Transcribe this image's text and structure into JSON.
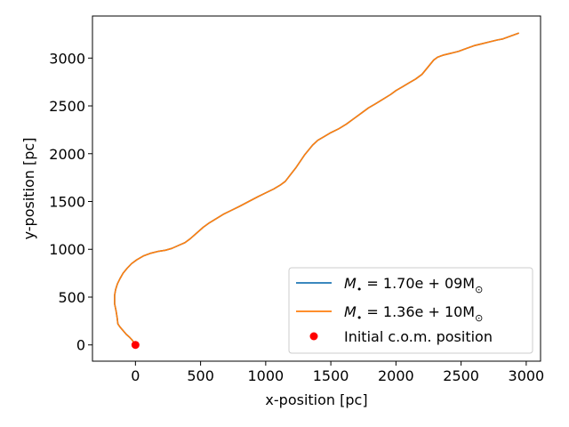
{
  "chart_data": {
    "type": "line",
    "title": "",
    "xlabel": "x-position [pc]",
    "ylabel": "y-position [pc]",
    "xlim": [
      -330,
      3110
    ],
    "ylim": [
      -170,
      3440
    ],
    "xticks": [
      0,
      500,
      1000,
      1500,
      2000,
      2500,
      3000
    ],
    "yticks": [
      0,
      500,
      1000,
      1500,
      2000,
      2500,
      3000
    ],
    "grid": false,
    "legend_position": "lower-right",
    "series": [
      {
        "name": "M_{•}=1.70e+09M_{⊙}",
        "name_parts": {
          "lhs": "M",
          "sub1": "•",
          "mid": " = 1.70e + 09M",
          "sub2": "⊙"
        },
        "color": "#1f77b4",
        "x": [
          0,
          -10,
          -25,
          -45,
          -70,
          -95,
          -120,
          -135,
          -140,
          -148,
          -160,
          -160,
          -152,
          -138,
          -120,
          -95,
          -65,
          -30,
          10,
          60,
          120,
          180,
          230,
          280,
          330,
          380,
          420,
          470,
          520,
          560,
          620,
          680,
          740,
          800,
          870,
          940,
          1000,
          1060,
          1110,
          1150,
          1190,
          1230,
          1270,
          1300,
          1330,
          1360,
          1400,
          1450,
          1500,
          1560,
          1620,
          1680,
          1740,
          1790,
          1840,
          1900,
          1960,
          2000,
          2050,
          2100,
          2150,
          2200,
          2230,
          2260,
          2290,
          2320,
          2360,
          2420,
          2480,
          2540,
          2600,
          2660,
          2720,
          2780,
          2820,
          2860,
          2900,
          2940
        ],
        "y": [
          0,
          20,
          50,
          80,
          110,
          150,
          190,
          220,
          280,
          350,
          430,
          520,
          580,
          640,
          690,
          750,
          800,
          850,
          890,
          930,
          960,
          980,
          990,
          1010,
          1040,
          1070,
          1110,
          1170,
          1230,
          1270,
          1320,
          1370,
          1410,
          1450,
          1500,
          1550,
          1590,
          1630,
          1670,
          1710,
          1780,
          1850,
          1930,
          1990,
          2040,
          2090,
          2140,
          2180,
          2220,
          2260,
          2310,
          2370,
          2430,
          2480,
          2520,
          2570,
          2620,
          2660,
          2700,
          2740,
          2780,
          2830,
          2880,
          2930,
          2980,
          3010,
          3030,
          3050,
          3070,
          3100,
          3130,
          3150,
          3170,
          3190,
          3200,
          3220,
          3240,
          3260
        ]
      },
      {
        "name": "M_{•}=1.36e+10M_{⊙}",
        "name_parts": {
          "lhs": "M",
          "sub1": "•",
          "mid": " = 1.36e + 10M",
          "sub2": "⊙"
        },
        "color": "#ff7f0e",
        "x": [
          0,
          -10,
          -25,
          -45,
          -70,
          -95,
          -120,
          -135,
          -140,
          -148,
          -160,
          -160,
          -152,
          -138,
          -120,
          -95,
          -65,
          -30,
          10,
          60,
          120,
          180,
          230,
          280,
          330,
          380,
          420,
          470,
          520,
          560,
          620,
          680,
          740,
          800,
          870,
          940,
          1000,
          1060,
          1110,
          1150,
          1190,
          1230,
          1270,
          1300,
          1330,
          1360,
          1400,
          1450,
          1500,
          1560,
          1620,
          1680,
          1740,
          1790,
          1840,
          1900,
          1960,
          2000,
          2050,
          2100,
          2150,
          2200,
          2230,
          2260,
          2290,
          2320,
          2360,
          2420,
          2480,
          2540,
          2600,
          2660,
          2720,
          2780,
          2820,
          2860,
          2900,
          2940
        ],
        "y": [
          0,
          20,
          50,
          80,
          110,
          150,
          190,
          220,
          280,
          350,
          430,
          520,
          580,
          640,
          690,
          750,
          800,
          850,
          890,
          930,
          960,
          980,
          990,
          1010,
          1040,
          1070,
          1110,
          1170,
          1230,
          1270,
          1320,
          1370,
          1410,
          1450,
          1500,
          1550,
          1590,
          1630,
          1670,
          1710,
          1780,
          1850,
          1930,
          1990,
          2040,
          2090,
          2140,
          2180,
          2220,
          2260,
          2310,
          2370,
          2430,
          2480,
          2520,
          2570,
          2620,
          2660,
          2700,
          2740,
          2780,
          2830,
          2880,
          2930,
          2980,
          3010,
          3030,
          3050,
          3070,
          3100,
          3130,
          3150,
          3170,
          3190,
          3200,
          3220,
          3240,
          3260
        ]
      }
    ],
    "points": [
      {
        "name": "Initial c.o.m. position",
        "x": 0,
        "y": 0,
        "color": "#ff0000"
      }
    ]
  }
}
